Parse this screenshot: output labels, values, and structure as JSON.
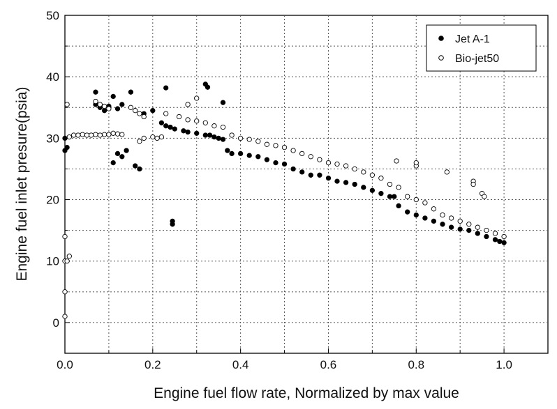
{
  "chart_data": {
    "type": "scatter",
    "title": "",
    "xlabel": "Engine fuel flow rate, Normalized by max value",
    "ylabel": "Engine fuel inlet presure(psia)",
    "xlim": [
      0.0,
      1.1
    ],
    "ylim": [
      -5,
      50
    ],
    "xticks": [
      "0.0",
      "0.2",
      "0.4",
      "0.6",
      "0.8",
      "1.0"
    ],
    "yticks": [
      "0",
      "10",
      "20",
      "30",
      "40",
      "50"
    ],
    "grid": true,
    "legend_position": "top-right",
    "series": [
      {
        "name": "Jet A-1",
        "marker": "filled-circle",
        "color": "#000000",
        "x": [
          0.0,
          0.0,
          0.005,
          0.07,
          0.07,
          0.08,
          0.09,
          0.1,
          0.11,
          0.12,
          0.13,
          0.11,
          0.12,
          0.13,
          0.14,
          0.16,
          0.17,
          0.15,
          0.18,
          0.2,
          0.22,
          0.23,
          0.24,
          0.25,
          0.27,
          0.28,
          0.3,
          0.32,
          0.33,
          0.34,
          0.35,
          0.36,
          0.37,
          0.38,
          0.4,
          0.42,
          0.44,
          0.46,
          0.48,
          0.5,
          0.52,
          0.54,
          0.56,
          0.58,
          0.6,
          0.62,
          0.64,
          0.66,
          0.68,
          0.7,
          0.72,
          0.74,
          0.75,
          0.76,
          0.78,
          0.8,
          0.82,
          0.84,
          0.86,
          0.88,
          0.9,
          0.92,
          0.94,
          0.96,
          0.98,
          0.99,
          1.0,
          0.245,
          0.245,
          0.23,
          0.32,
          0.325,
          0.36
        ],
        "y": [
          28.0,
          30.0,
          28.5,
          37.5,
          35.5,
          35.0,
          34.5,
          35.2,
          36.8,
          34.8,
          35.5,
          26.0,
          27.5,
          27.0,
          28.0,
          25.5,
          25.0,
          37.5,
          34.0,
          34.5,
          32.5,
          32.0,
          31.8,
          31.5,
          31.2,
          31.0,
          30.8,
          30.5,
          30.5,
          30.2,
          30.0,
          29.8,
          28.0,
          27.5,
          27.5,
          27.2,
          27.0,
          26.5,
          26.0,
          25.8,
          25.0,
          24.5,
          24.0,
          24.0,
          23.5,
          23.0,
          22.8,
          22.5,
          22.0,
          21.5,
          21.0,
          20.5,
          20.5,
          19.0,
          18.0,
          17.5,
          17.0,
          16.5,
          16.0,
          15.5,
          15.2,
          15.0,
          14.5,
          14.0,
          13.5,
          13.2,
          13.0,
          16.0,
          16.5,
          38.2,
          38.8,
          38.3,
          35.8
        ]
      },
      {
        "name": "Bio-jet50",
        "marker": "open-circle",
        "color": "#000000",
        "x": [
          0.0,
          0.0,
          0.0,
          0.0,
          0.005,
          0.01,
          0.02,
          0.03,
          0.04,
          0.05,
          0.06,
          0.07,
          0.08,
          0.09,
          0.1,
          0.11,
          0.12,
          0.13,
          0.07,
          0.08,
          0.09,
          0.1,
          0.15,
          0.16,
          0.17,
          0.18,
          0.2,
          0.21,
          0.22,
          0.23,
          0.26,
          0.28,
          0.3,
          0.32,
          0.34,
          0.36,
          0.38,
          0.4,
          0.42,
          0.44,
          0.46,
          0.48,
          0.5,
          0.52,
          0.54,
          0.56,
          0.58,
          0.6,
          0.62,
          0.64,
          0.66,
          0.68,
          0.7,
          0.72,
          0.74,
          0.76,
          0.78,
          0.8,
          0.82,
          0.84,
          0.86,
          0.88,
          0.9,
          0.92,
          0.94,
          0.96,
          0.98,
          1.0,
          0.755,
          0.8,
          0.8,
          0.87,
          0.93,
          0.93,
          0.95,
          0.955,
          0.3,
          0.28,
          0.17,
          0.18,
          0.005,
          0.01
        ],
        "y": [
          1.0,
          5.0,
          10.0,
          14.0,
          35.5,
          30.2,
          30.5,
          30.5,
          30.6,
          30.5,
          30.5,
          30.6,
          30.5,
          30.6,
          30.6,
          30.8,
          30.7,
          30.6,
          36.0,
          35.5,
          35.2,
          34.8,
          35.0,
          34.5,
          34.0,
          33.5,
          30.2,
          30.0,
          30.2,
          34.0,
          33.5,
          33.0,
          32.8,
          32.5,
          32.0,
          31.8,
          30.5,
          30.0,
          29.8,
          29.5,
          29.0,
          28.8,
          28.5,
          28.0,
          27.5,
          27.0,
          26.5,
          26.0,
          25.8,
          25.5,
          25.0,
          24.5,
          24.0,
          23.5,
          22.5,
          22.0,
          20.5,
          20.0,
          19.5,
          18.5,
          17.5,
          17.0,
          16.5,
          16.0,
          15.5,
          15.0,
          14.5,
          14.0,
          26.3,
          25.5,
          26.0,
          24.5,
          23.0,
          22.5,
          21.0,
          20.5,
          36.5,
          35.5,
          29.5,
          30.0,
          10.0,
          10.8
        ]
      }
    ]
  }
}
